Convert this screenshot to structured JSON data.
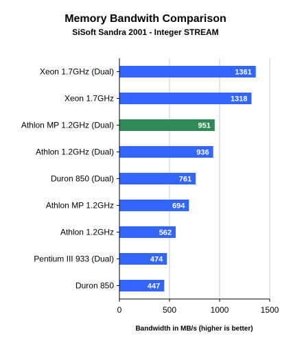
{
  "chart_data": {
    "type": "bar",
    "orientation": "horizontal",
    "title": "Memory Bandwith Comparison",
    "subtitle": "SiSoft Sandra 2001 - Integer STREAM",
    "xlabel": "Bandwidth in MB/s (higher is better)",
    "ylabel": "",
    "xlim": [
      0,
      1500
    ],
    "x_ticks": [
      "0",
      "500",
      "1000",
      "1500"
    ],
    "grid": true,
    "categories": [
      "Xeon 1.7GHz (Dual)",
      "Xeon 1.7GHz",
      "Athlon MP 1.2GHz (Dual)",
      "Athlon 1.2GHz (Dual)",
      "Duron 850 (Dual)",
      "Athlon MP 1.2GHz",
      "Athlon 1.2GHz",
      "Pentium III 933 (Dual)",
      "Duron 850"
    ],
    "values": [
      1361,
      1318,
      951,
      936,
      761,
      694,
      562,
      474,
      447
    ],
    "bar_colors": [
      "#3366ff",
      "#3366ff",
      "#2e8b57",
      "#3366ff",
      "#3366ff",
      "#3366ff",
      "#3366ff",
      "#3366ff",
      "#3366ff"
    ]
  }
}
